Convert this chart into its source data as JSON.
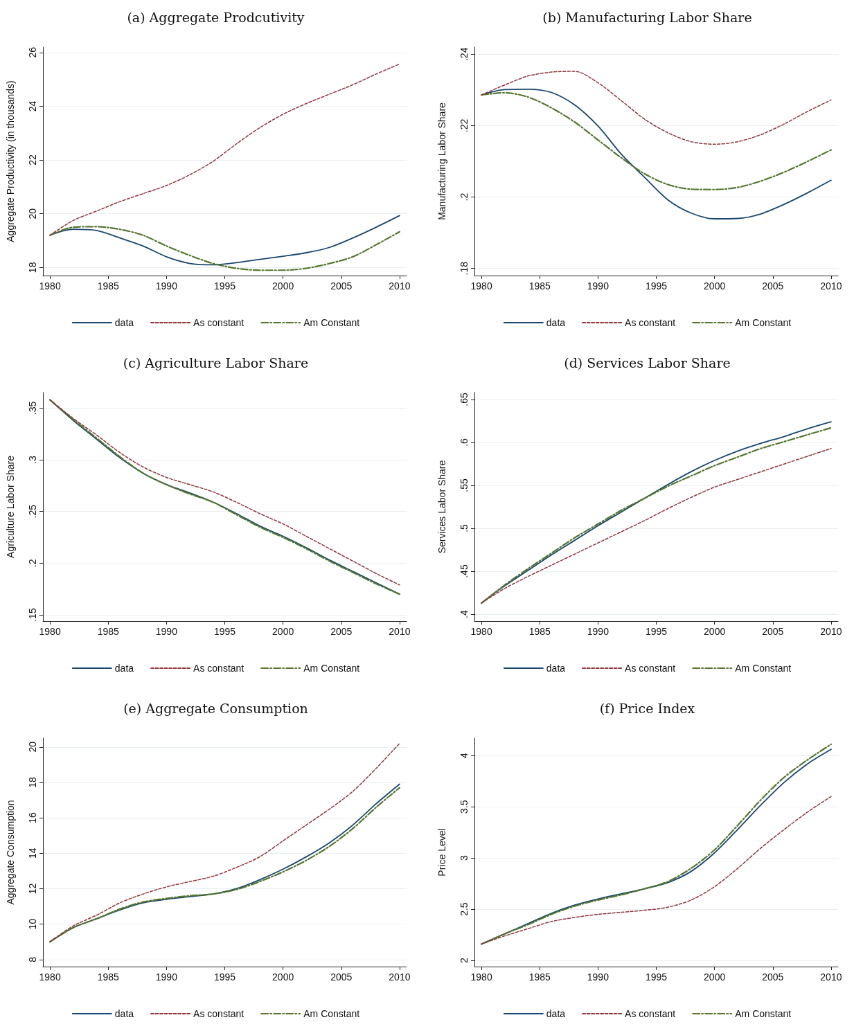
{
  "chart_data": [
    {
      "type": "line",
      "title": "(a) Aggregate Prodcutivity",
      "ylabel": "Aggregate Productivity (in thousands)",
      "x": [
        1980,
        1982,
        1984,
        1986,
        1988,
        1990,
        1992,
        1994,
        1996,
        1998,
        2000,
        2002,
        2004,
        2006,
        2008,
        2010
      ],
      "xlim": [
        1979.4,
        2010.6
      ],
      "xticks": [
        1980,
        1985,
        1990,
        1995,
        2000,
        2005,
        2010
      ],
      "ylim": [
        17.7,
        26.2
      ],
      "yticks": [
        18,
        20,
        22,
        24,
        26
      ],
      "grid": "y",
      "legend": "bottom",
      "marker": "none",
      "series": [
        {
          "name": "data",
          "color": "#1a476f",
          "line_style": "solid",
          "values": [
            19.2,
            19.42,
            19.38,
            19.1,
            18.8,
            18.4,
            18.15,
            18.1,
            18.18,
            18.3,
            18.42,
            18.55,
            18.75,
            19.1,
            19.5,
            19.93
          ]
        },
        {
          "name": "As constant",
          "color": "#90353b",
          "line_style": "dashed",
          "values": [
            19.2,
            19.75,
            20.1,
            20.45,
            20.75,
            21.05,
            21.45,
            21.95,
            22.6,
            23.2,
            23.7,
            24.1,
            24.45,
            24.8,
            25.2,
            25.57
          ]
        },
        {
          "name": "Am Constant",
          "color": "#55752f",
          "line_style": "dashdot",
          "values": [
            19.2,
            19.5,
            19.52,
            19.42,
            19.2,
            18.8,
            18.45,
            18.15,
            17.97,
            17.9,
            17.9,
            17.97,
            18.15,
            18.4,
            18.85,
            19.33
          ]
        }
      ]
    },
    {
      "type": "line",
      "title": "(b) Manufacturing Labor Share",
      "ylabel": "Manufacturing Labor Share",
      "x": [
        1980,
        1982,
        1984,
        1986,
        1988,
        1990,
        1992,
        1994,
        1996,
        1998,
        2000,
        2002,
        2004,
        2006,
        2008,
        2010
      ],
      "xlim": [
        1979.4,
        2010.6
      ],
      "xticks": [
        1980,
        1985,
        1990,
        1995,
        2000,
        2005,
        2010
      ],
      "ylim": [
        0.178,
        0.242
      ],
      "yticks": [
        {
          "value": 0.18,
          "label": ".18"
        },
        {
          "value": 0.2,
          "label": ".2"
        },
        {
          "value": 0.22,
          "label": ".22"
        },
        {
          "value": 0.24,
          "label": ".24"
        }
      ],
      "grid": "y",
      "legend": "bottom",
      "marker": "none",
      "series": [
        {
          "name": "data",
          "color": "#1a476f",
          "line_style": "solid",
          "values": [
            0.2286,
            0.2301,
            0.2302,
            0.2293,
            0.2258,
            0.2199,
            0.212,
            0.2055,
            0.1992,
            0.1955,
            0.1939,
            0.194,
            0.1953,
            0.198,
            0.2012,
            0.2047
          ]
        },
        {
          "name": "As constant",
          "color": "#90353b",
          "line_style": "dashed",
          "values": [
            0.2286,
            0.2314,
            0.2339,
            0.235,
            0.2352,
            0.232,
            0.227,
            0.2218,
            0.218,
            0.2155,
            0.2148,
            0.2155,
            0.2175,
            0.2205,
            0.224,
            0.2272
          ]
        },
        {
          "name": "Am Constant",
          "color": "#55752f",
          "line_style": "dashdot",
          "values": [
            0.2286,
            0.2292,
            0.228,
            0.225,
            0.221,
            0.216,
            0.211,
            0.2065,
            0.2035,
            0.2022,
            0.2021,
            0.2027,
            0.2045,
            0.207,
            0.21,
            0.2132
          ]
        }
      ]
    },
    {
      "type": "line",
      "title": "(c) Agriculture Labor Share",
      "ylabel": "Agriculture Labor Share",
      "x": [
        1980,
        1982,
        1984,
        1986,
        1988,
        1990,
        1992,
        1994,
        1996,
        1998,
        2000,
        2002,
        2004,
        2006,
        2008,
        2010
      ],
      "xlim": [
        1979.4,
        2010.6
      ],
      "xticks": [
        1980,
        1985,
        1990,
        1995,
        2000,
        2005,
        2010
      ],
      "ylim": [
        0.144,
        0.365
      ],
      "yticks": [
        {
          "value": 0.15,
          "label": ".15"
        },
        {
          "value": 0.2,
          "label": ".2"
        },
        {
          "value": 0.25,
          "label": ".25"
        },
        {
          "value": 0.3,
          "label": ".3"
        },
        {
          "value": 0.35,
          "label": ".35"
        }
      ],
      "grid": "y",
      "legend": "bottom",
      "marker": "none",
      "series": [
        {
          "name": "data",
          "color": "#1a476f",
          "line_style": "solid",
          "values": [
            0.358,
            0.338,
            0.32,
            0.302,
            0.287,
            0.276,
            0.268,
            0.259,
            0.248,
            0.236,
            0.226,
            0.215,
            0.203,
            0.192,
            0.181,
            0.17
          ]
        },
        {
          "name": "As constant",
          "color": "#90353b",
          "line_style": "dashed",
          "values": [
            0.358,
            0.34,
            0.324,
            0.307,
            0.293,
            0.283,
            0.276,
            0.269,
            0.259,
            0.248,
            0.238,
            0.226,
            0.214,
            0.202,
            0.19,
            0.179
          ]
        },
        {
          "name": "Am Constant",
          "color": "#55752f",
          "line_style": "dashdot",
          "values": [
            0.358,
            0.339,
            0.321,
            0.303,
            0.287,
            0.276,
            0.267,
            0.259,
            0.247,
            0.235,
            0.225,
            0.214,
            0.202,
            0.191,
            0.18,
            0.17
          ]
        }
      ]
    },
    {
      "type": "line",
      "title": "(d) Services Labor Share",
      "ylabel": "Services Labor Share",
      "x": [
        1980,
        1982,
        1984,
        1986,
        1988,
        1990,
        1992,
        1994,
        1996,
        1998,
        2000,
        2002,
        2004,
        2006,
        2008,
        2010
      ],
      "xlim": [
        1979.4,
        2010.6
      ],
      "xticks": [
        1980,
        1985,
        1990,
        1995,
        2000,
        2005,
        2010
      ],
      "ylim": [
        0.392,
        0.658
      ],
      "yticks": [
        {
          "value": 0.4,
          "label": ".4"
        },
        {
          "value": 0.45,
          "label": ".45"
        },
        {
          "value": 0.5,
          "label": ".5"
        },
        {
          "value": 0.55,
          "label": ".55"
        },
        {
          "value": 0.6,
          "label": ".6"
        },
        {
          "value": 0.65,
          "label": ".65"
        }
      ],
      "grid": "y",
      "legend": "bottom",
      "marker": "none",
      "series": [
        {
          "name": "data",
          "color": "#1a476f",
          "line_style": "solid",
          "values": [
            0.413,
            0.433,
            0.451,
            0.469,
            0.486,
            0.503,
            0.519,
            0.535,
            0.551,
            0.566,
            0.579,
            0.59,
            0.599,
            0.607,
            0.616,
            0.624
          ]
        },
        {
          "name": "As constant",
          "color": "#90353b",
          "line_style": "dashed",
          "values": [
            0.413,
            0.43,
            0.444,
            0.457,
            0.47,
            0.483,
            0.496,
            0.509,
            0.523,
            0.536,
            0.548,
            0.557,
            0.566,
            0.575,
            0.584,
            0.593
          ]
        },
        {
          "name": "Am Constant",
          "color": "#55752f",
          "line_style": "dashdot",
          "values": [
            0.413,
            0.434,
            0.453,
            0.471,
            0.489,
            0.505,
            0.521,
            0.535,
            0.549,
            0.561,
            0.573,
            0.583,
            0.593,
            0.601,
            0.609,
            0.617
          ]
        }
      ]
    },
    {
      "type": "line",
      "title": "(e) Aggregate Consumption",
      "ylabel": "Aggregate Consumption",
      "x": [
        1980,
        1982,
        1984,
        1986,
        1988,
        1990,
        1992,
        1994,
        1996,
        1998,
        2000,
        2002,
        2004,
        2006,
        2008,
        2010
      ],
      "xlim": [
        1979.4,
        2010.6
      ],
      "xticks": [
        1980,
        1985,
        1990,
        1995,
        2000,
        2005,
        2010
      ],
      "ylim": [
        7.6,
        20.5
      ],
      "yticks": [
        8,
        10,
        12,
        14,
        16,
        18,
        20
      ],
      "grid": "y",
      "legend": "bottom",
      "marker": "none",
      "series": [
        {
          "name": "data",
          "color": "#1a476f",
          "line_style": "solid",
          "values": [
            9.0,
            9.8,
            10.3,
            10.8,
            11.2,
            11.4,
            11.55,
            11.7,
            12.0,
            12.5,
            13.1,
            13.8,
            14.6,
            15.6,
            16.8,
            17.9
          ]
        },
        {
          "name": "As constant",
          "color": "#90353b",
          "line_style": "dashed",
          "values": [
            9.0,
            9.9,
            10.5,
            11.2,
            11.7,
            12.1,
            12.4,
            12.7,
            13.2,
            13.8,
            14.7,
            15.6,
            16.5,
            17.5,
            18.8,
            20.2
          ]
        },
        {
          "name": "Am Constant",
          "color": "#55752f",
          "line_style": "dashdot",
          "values": [
            9.0,
            9.8,
            10.3,
            10.85,
            11.25,
            11.45,
            11.6,
            11.7,
            11.95,
            12.4,
            12.95,
            13.6,
            14.4,
            15.4,
            16.6,
            17.7
          ]
        }
      ]
    },
    {
      "type": "line",
      "title": "(f) Price Index",
      "ylabel": "Price Level",
      "x": [
        1980,
        1982,
        1984,
        1986,
        1988,
        1990,
        1992,
        1994,
        1996,
        1998,
        2000,
        2002,
        2004,
        2006,
        2008,
        2010
      ],
      "xlim": [
        1979.4,
        2010.6
      ],
      "xticks": [
        1980,
        1985,
        1990,
        1995,
        2000,
        2005,
        2010
      ],
      "ylim": [
        1.94,
        4.17
      ],
      "yticks": [
        2,
        2.5,
        3,
        3.5,
        4
      ],
      "grid": "y",
      "legend": "bottom",
      "marker": "none",
      "series": [
        {
          "name": "data",
          "color": "#1a476f",
          "line_style": "solid",
          "values": [
            2.16,
            2.26,
            2.36,
            2.46,
            2.54,
            2.6,
            2.65,
            2.7,
            2.76,
            2.87,
            3.05,
            3.28,
            3.52,
            3.74,
            3.92,
            4.06
          ]
        },
        {
          "name": "As constant",
          "color": "#90353b",
          "line_style": "dashed",
          "values": [
            2.16,
            2.24,
            2.31,
            2.38,
            2.42,
            2.45,
            2.47,
            2.49,
            2.52,
            2.59,
            2.72,
            2.9,
            3.1,
            3.28,
            3.45,
            3.6
          ]
        },
        {
          "name": "Am Constant",
          "color": "#55752f",
          "line_style": "dashdot",
          "values": [
            2.16,
            2.26,
            2.35,
            2.45,
            2.53,
            2.59,
            2.64,
            2.7,
            2.77,
            2.9,
            3.08,
            3.32,
            3.57,
            3.79,
            3.96,
            4.11
          ]
        }
      ]
    }
  ]
}
